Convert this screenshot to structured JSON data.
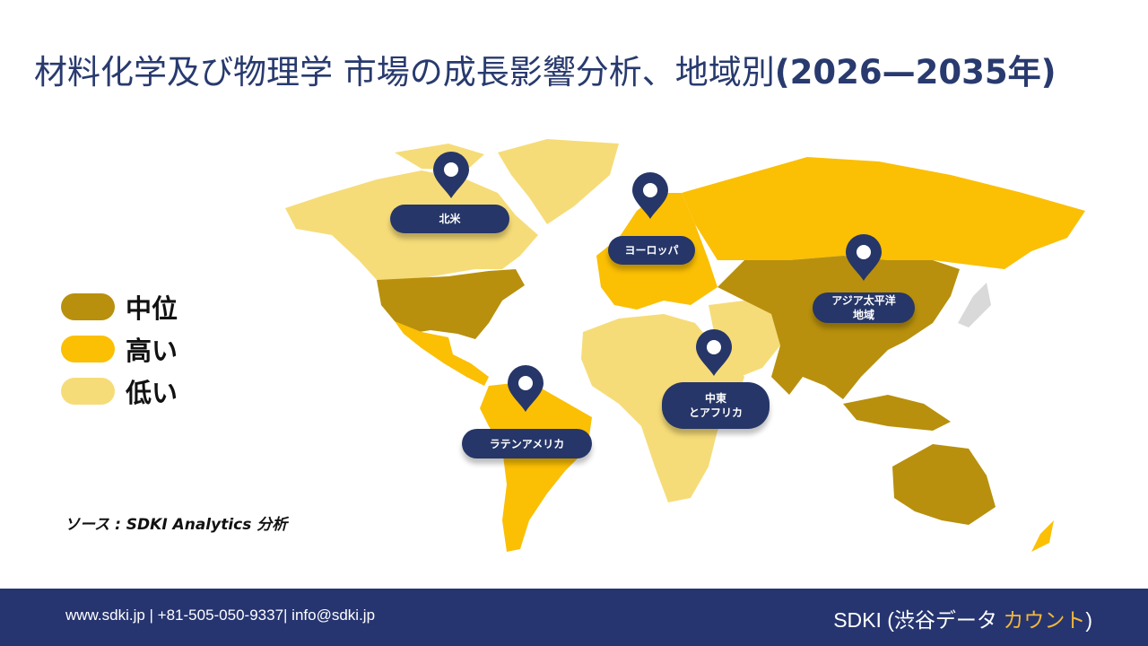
{
  "title": {
    "main": "材料化学及び物理学  市場の成長影響分析、地域別",
    "years": "(2026—2035年)"
  },
  "legend": [
    {
      "label": "中位",
      "color": "#b8900d"
    },
    {
      "label": "高い",
      "color": "#fbbf04"
    },
    {
      "label": "低い",
      "color": "#f6dc78"
    }
  ],
  "regions": [
    {
      "label": "北米",
      "level": "低い"
    },
    {
      "label": "ヨーロッパ",
      "level": "高い"
    },
    {
      "label": "アジア太平洋\n地域",
      "level": "中位"
    },
    {
      "label": "中東\nとアフリカ",
      "level": "低い"
    },
    {
      "label": "ラテンアメリカ",
      "level": "高い"
    }
  ],
  "source": "ソース : SDKI Analytics 分析",
  "footer": {
    "contact": "www.sdki.jp | +81-505-050-9337| info@sdki.jp",
    "brand_prefix": "SDKI (渋谷データ ",
    "brand_accent": "カウント",
    "brand_suffix": ")"
  },
  "colors": {
    "navy": "#263570",
    "title": "#283a6e",
    "accent": "#f4b73a",
    "no_data": "#d9d9d9"
  },
  "icons": [
    "map-pin-icon"
  ]
}
